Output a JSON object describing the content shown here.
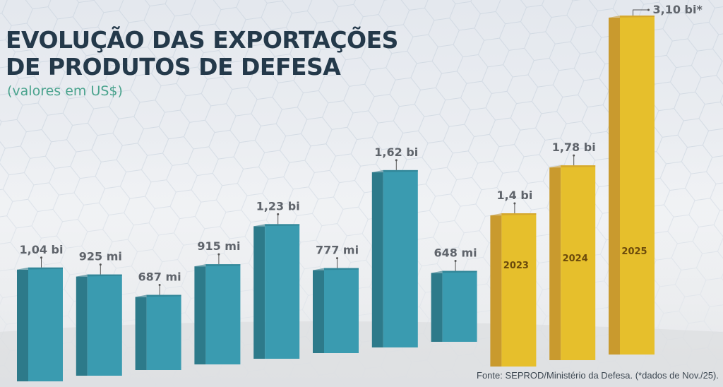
{
  "header": {
    "title_line1": "EVOLUÇÃO DAS EXPORTAÇÕES",
    "title_line2": "DE PRODUTOS DE DEFESA",
    "subtitle": "(valores em US$)"
  },
  "footer": {
    "source": "Fonte: SEPROD/Ministério da Defesa. (*dados de Nov./25)."
  },
  "colors": {
    "teal_front": "#3a9bb0",
    "teal_side": "#2d7a8a",
    "gold_front": "#e6bf2c",
    "gold_side": "#c99a2e",
    "title": "#24394a",
    "subtitle": "#4aa38d"
  },
  "chart_data": {
    "type": "bar",
    "title": "EVOLUÇÃO DAS EXPORTAÇÕES DE PRODUTOS DE DEFESA",
    "subtitle": "(valores em US$)",
    "xlabel": "",
    "ylabel": "",
    "unit": "US$ bilhões",
    "ylim": [
      0,
      3.2
    ],
    "grid": false,
    "legend": "none",
    "series": [
      {
        "name": "Exportações",
        "values": [
          1.04,
          0.925,
          0.687,
          0.915,
          1.23,
          0.777,
          1.62,
          0.648,
          1.4,
          1.78,
          3.1
        ],
        "labels": [
          "1,04 bi",
          "925 mi",
          "687 mi",
          "915 mi",
          "1,23 bi",
          "777 mi",
          "1,62 bi",
          "648 mi",
          "1,4 bi",
          "1,78 bi",
          "3,10 bi*"
        ],
        "categories": [
          "",
          "",
          "",
          "",
          "",
          "",
          "",
          "",
          "2023",
          "2024",
          "2025"
        ],
        "highlight": [
          false,
          false,
          false,
          false,
          false,
          false,
          false,
          false,
          true,
          true,
          true
        ]
      }
    ]
  }
}
